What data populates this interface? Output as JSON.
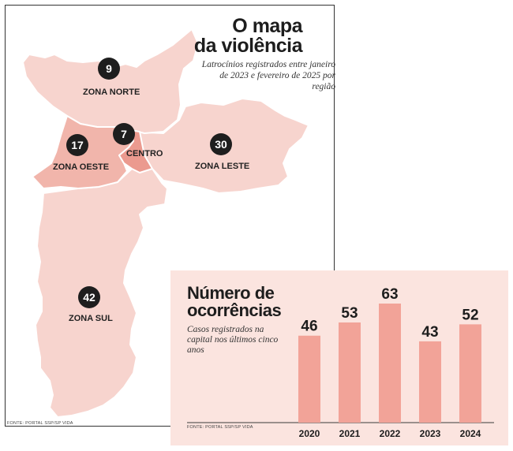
{
  "map": {
    "title_line1": "O mapa",
    "title_line2": "da violência",
    "subtitle": "Latrocínios registrados entre janeiro de 2023 e fevereiro de 2025 por região",
    "source": "FONTE: PORTAL SSP/SP VIDA",
    "colors": {
      "light": "#f7d4ce",
      "medium": "#f1b5ab",
      "dark": "#eb9a8f"
    },
    "regions": [
      {
        "name": "ZONA NORTE",
        "count": "9"
      },
      {
        "name": "ZONA OESTE",
        "count": "17"
      },
      {
        "name": "CENTRO",
        "count": "7"
      },
      {
        "name": "ZONA LESTE",
        "count": "30"
      },
      {
        "name": "ZONA SUL",
        "count": "42"
      }
    ]
  },
  "chart_data": {
    "type": "bar",
    "title_line1": "Número de",
    "title_line2": "ocorrências",
    "subtitle": "Casos registrados na capital nos últimos cinco anos",
    "source": "FONTE: PORTAL SSP/SP VIDA",
    "categories": [
      "2020",
      "2021",
      "2022",
      "2023",
      "2024"
    ],
    "values": [
      46,
      53,
      63,
      43,
      52
    ],
    "ylim": [
      0,
      63
    ],
    "bar_color": "#f2a398",
    "xlabel": "",
    "ylabel": ""
  }
}
